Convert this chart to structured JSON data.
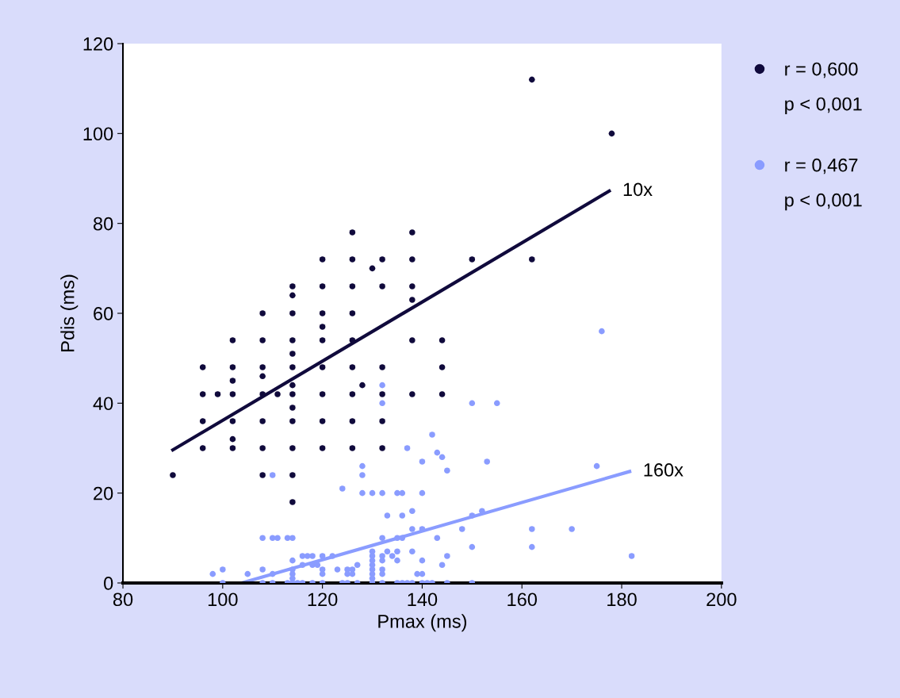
{
  "chart_data": {
    "type": "scatter",
    "xlabel": "Pmax (ms)",
    "ylabel": "Pdis (ms)",
    "xlim": [
      80,
      200
    ],
    "xticks": [
      80,
      100,
      120,
      140,
      160,
      180,
      200
    ],
    "ylim": [
      0,
      120
    ],
    "yticks": [
      0,
      20,
      40,
      60,
      80,
      100,
      120
    ],
    "grid": false,
    "legend": "right",
    "marker": "circle",
    "series": [
      {
        "name": "r = 0,600",
        "color": "#100a3c",
        "x": [
          90,
          96,
          96,
          96,
          96,
          99,
          102,
          102,
          102,
          102,
          102,
          102,
          102,
          108,
          108,
          108,
          108,
          108,
          108,
          108,
          108,
          111,
          114,
          114,
          114,
          114,
          114,
          114,
          114,
          114,
          114,
          114,
          114,
          114,
          114,
          120,
          120,
          120,
          120,
          120,
          120,
          120,
          120,
          120,
          126,
          126,
          126,
          126,
          126,
          126,
          126,
          126,
          126,
          128,
          130,
          132,
          132,
          132,
          132,
          132,
          132,
          138,
          138,
          138,
          138,
          138,
          138,
          144,
          144,
          144,
          150,
          162,
          162,
          178
        ],
        "values": [
          24,
          48,
          42,
          36,
          30,
          42,
          54,
          48,
          45,
          42,
          36,
          32,
          30,
          60,
          54,
          48,
          46,
          42,
          36,
          30,
          24,
          42,
          66,
          64,
          60,
          54,
          51,
          48,
          44,
          42,
          39,
          36,
          30,
          24,
          18,
          72,
          66,
          60,
          57,
          54,
          48,
          42,
          36,
          30,
          78,
          72,
          66,
          60,
          54,
          48,
          42,
          36,
          30,
          44,
          70,
          72,
          66,
          48,
          42,
          36,
          30,
          78,
          72,
          66,
          63,
          54,
          42,
          54,
          48,
          42,
          72,
          112,
          72,
          100
        ]
      },
      {
        "name": "r = 0,467",
        "color": "#8a9cff",
        "x": [
          110,
          132,
          132,
          142,
          137,
          143,
          144,
          140,
          145,
          128,
          128,
          124,
          128,
          130,
          132,
          135,
          136,
          140,
          133,
          136,
          138,
          138,
          140,
          143,
          148,
          108,
          110,
          111,
          113,
          114,
          132,
          135,
          136,
          133,
          135,
          134,
          135,
          138,
          140,
          145,
          144,
          130,
          130,
          130,
          130,
          130,
          130,
          130,
          132,
          132,
          132,
          132,
          116,
          117,
          118,
          120,
          122,
          114,
          116,
          118,
          119,
          127,
          123,
          120,
          120,
          125,
          126,
          125,
          126,
          98,
          100,
          105,
          108,
          110,
          114,
          114,
          114,
          139,
          140,
          100,
          108,
          110,
          113,
          114,
          115,
          116,
          118,
          120,
          124,
          125,
          127,
          130,
          132,
          135,
          136,
          137,
          138,
          140,
          141,
          142,
          145,
          176,
          150,
          155,
          175,
          153,
          162,
          162,
          170,
          182,
          150,
          150,
          152,
          150
        ],
        "values": [
          24,
          44,
          40,
          33,
          30,
          29,
          28,
          27,
          25,
          26,
          24,
          21,
          20,
          20,
          20,
          20,
          20,
          20,
          15,
          15,
          16,
          12,
          12,
          10,
          12,
          10,
          10,
          10,
          10,
          10,
          10,
          10,
          10,
          7,
          7,
          6,
          5,
          7,
          5,
          6,
          4,
          7,
          6,
          5,
          4,
          3,
          2,
          1,
          6,
          5,
          3,
          2,
          6,
          6,
          6,
          6,
          6,
          5,
          4,
          4,
          4,
          4,
          3,
          3,
          2,
          3,
          3,
          2,
          2,
          2,
          3,
          2,
          3,
          2,
          3,
          2,
          1,
          2,
          2,
          0,
          0,
          0,
          0,
          0,
          0,
          0,
          0,
          0,
          0,
          0,
          0,
          0,
          0,
          0,
          0,
          0,
          0,
          0,
          0,
          0,
          0,
          56,
          40,
          40,
          26,
          27,
          12,
          8,
          12,
          6,
          8,
          15,
          16,
          0
        ]
      },
      {
        "type": "line",
        "marker": "none",
        "color": "#100a3c",
        "x": [
          90,
          177.5
        ],
        "values": [
          29.6,
          87.2
        ]
      },
      {
        "type": "line",
        "marker": "none",
        "color": "#8a9cff",
        "x": [
          103.8,
          181.6
        ],
        "values": [
          0,
          24.8
        ]
      }
    ],
    "annotations": [
      {
        "text": "10x",
        "x": 177.5,
        "y": 87.2
      },
      {
        "text": "160x",
        "x": 181.6,
        "y": 24.8
      },
      "p < 0,001",
      "p < 0,001"
    ]
  }
}
